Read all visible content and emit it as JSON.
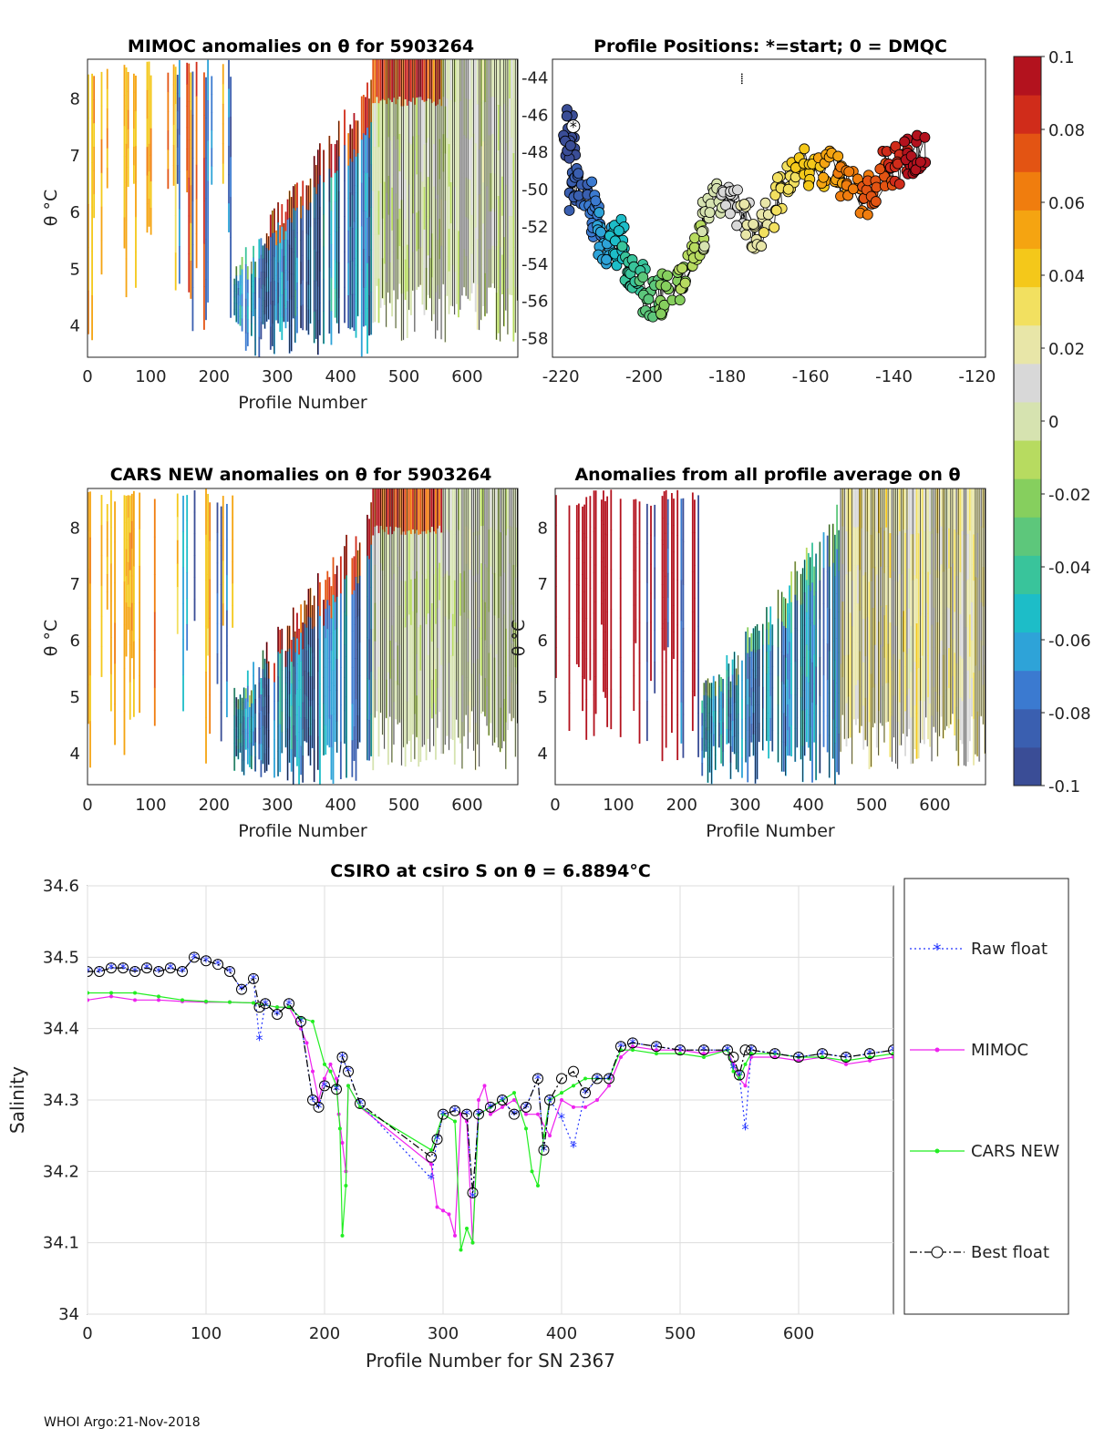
{
  "colors": {
    "raw_float": "#2233ff",
    "mimoc": "#ee22ee",
    "cars_new": "#22ee22",
    "best_float": "#000000",
    "colormap": [
      "#3a4d96",
      "#3a5fb0",
      "#3b7ad0",
      "#2ea3d8",
      "#1dbdc8",
      "#39c49b",
      "#5dc77b",
      "#86cf5e",
      "#b7db60",
      "#d6e3b0",
      "#d8d8d8",
      "#e8e6a8",
      "#f2e060",
      "#f4c81a",
      "#f5a411",
      "#f07d0e",
      "#e35413",
      "#d02c1a",
      "#b3121e"
    ]
  },
  "panels": {
    "mimoc": {
      "title": "MIMOC anomalies on θ  for 5903264",
      "ylabel": "θ °C",
      "xlabel": "Profile Number",
      "xticks": [
        "0",
        "100",
        "200",
        "300",
        "400",
        "500",
        "600"
      ],
      "yticks": [
        "4",
        "5",
        "6",
        "7",
        "8"
      ]
    },
    "positions": {
      "title": "Profile Positions: *=start; 0 = DMQC",
      "xticks": [
        "-220",
        "-200",
        "-180",
        "-160",
        "-140",
        "-120"
      ],
      "yticks": [
        "-44",
        "-46",
        "-48",
        "-50",
        "-52",
        "-54",
        "-56",
        "-58"
      ]
    },
    "cars": {
      "title": "CARS NEW anomalies on θ for 5903264",
      "ylabel": "θ °C",
      "xlabel": "Profile Number",
      "xticks": [
        "0",
        "100",
        "200",
        "300",
        "400",
        "500",
        "600"
      ],
      "yticks": [
        "4",
        "5",
        "6",
        "7",
        "8"
      ]
    },
    "average": {
      "title": "Anomalies from all profile average on θ",
      "ylabel": "θ °C",
      "xlabel": "Profile Number",
      "xticks": [
        "0",
        "100",
        "200",
        "300",
        "400",
        "500",
        "600"
      ],
      "yticks": [
        "4",
        "5",
        "6",
        "7",
        "8"
      ]
    }
  },
  "colorbar": {
    "ticks": [
      "0.1",
      "0.08",
      "0.06",
      "0.04",
      "0.02",
      "0",
      "-0.02",
      "-0.04",
      "-0.06",
      "-0.08",
      "-0.1"
    ]
  },
  "chart_data": [
    {
      "type": "line",
      "title": "CSIRO at csiro S on θ = 6.8894°C",
      "xlabel": "Profile Number for SN 2367",
      "ylabel": "Salinity",
      "xlim": [
        0,
        680
      ],
      "ylim": [
        34,
        34.6
      ],
      "xticks": [
        "0",
        "100",
        "200",
        "300",
        "400",
        "500",
        "600"
      ],
      "yticks": [
        "34.6",
        "34.5",
        "34.4",
        "34.3",
        "34.2",
        "34.1",
        "34"
      ],
      "series": [
        {
          "name": "Raw float",
          "style": "dotted-star",
          "x": [
            0,
            10,
            20,
            30,
            40,
            50,
            60,
            70,
            80,
            90,
            100,
            110,
            120,
            130,
            140,
            145,
            150,
            160,
            170,
            180,
            190,
            195,
            200,
            210,
            215,
            220,
            230,
            290,
            295,
            300,
            310,
            320,
            325,
            330,
            340,
            350,
            360,
            370,
            380,
            385,
            390,
            400,
            410,
            420,
            430,
            440,
            450,
            460,
            480,
            500,
            520,
            540,
            545,
            550,
            555,
            560,
            580,
            600,
            620,
            640,
            660,
            680
          ],
          "y": [
            34.48,
            34.48,
            34.485,
            34.485,
            34.48,
            34.485,
            34.48,
            34.485,
            34.48,
            34.5,
            34.495,
            34.49,
            34.48,
            34.455,
            34.47,
            34.385,
            34.435,
            34.42,
            34.435,
            34.41,
            34.3,
            34.29,
            34.32,
            34.315,
            34.36,
            34.34,
            34.295,
            34.19,
            34.245,
            34.28,
            34.285,
            34.28,
            34.165,
            34.28,
            34.29,
            34.3,
            34.28,
            34.29,
            34.33,
            34.23,
            34.3,
            34.275,
            34.235,
            34.31,
            34.33,
            34.33,
            34.375,
            34.38,
            34.375,
            34.37,
            34.37,
            34.37,
            34.345,
            34.335,
            34.26,
            34.37,
            34.365,
            34.36,
            34.365,
            34.36,
            34.365,
            34.37
          ]
        },
        {
          "name": "MIMOC",
          "style": "solid-dot",
          "x": [
            0,
            20,
            40,
            60,
            80,
            100,
            120,
            140,
            160,
            170,
            180,
            185,
            190,
            195,
            200,
            205,
            210,
            212,
            215,
            218,
            220,
            230,
            290,
            295,
            300,
            305,
            310,
            315,
            320,
            325,
            330,
            335,
            340,
            350,
            360,
            370,
            380,
            390,
            400,
            410,
            420,
            430,
            440,
            450,
            460,
            480,
            500,
            520,
            540,
            545,
            550,
            555,
            560,
            580,
            600,
            620,
            640,
            660,
            680
          ],
          "y": [
            34.44,
            34.445,
            34.44,
            34.44,
            34.438,
            34.437,
            34.437,
            34.436,
            34.43,
            34.43,
            34.4,
            34.38,
            34.34,
            34.3,
            34.33,
            34.35,
            34.33,
            34.28,
            34.24,
            34.2,
            34.32,
            34.29,
            34.21,
            34.15,
            34.145,
            34.14,
            34.11,
            34.28,
            34.27,
            34.1,
            34.3,
            34.32,
            34.28,
            34.29,
            34.3,
            34.28,
            34.28,
            34.25,
            34.3,
            34.29,
            34.29,
            34.3,
            34.32,
            34.36,
            34.375,
            34.37,
            34.37,
            34.365,
            34.37,
            34.35,
            34.33,
            34.32,
            34.36,
            34.36,
            34.355,
            34.36,
            34.35,
            34.355,
            34.36
          ]
        },
        {
          "name": "CARS NEW",
          "style": "solid-dot",
          "x": [
            0,
            20,
            40,
            60,
            80,
            100,
            120,
            140,
            160,
            170,
            180,
            190,
            200,
            205,
            210,
            213,
            215,
            218,
            220,
            230,
            290,
            300,
            310,
            315,
            320,
            325,
            330,
            340,
            350,
            360,
            370,
            375,
            380,
            385,
            390,
            400,
            410,
            420,
            430,
            440,
            450,
            460,
            480,
            500,
            520,
            540,
            545,
            550,
            555,
            560,
            580,
            600,
            620,
            640,
            660,
            680
          ],
          "y": [
            34.45,
            34.45,
            34.45,
            34.445,
            34.44,
            34.438,
            34.437,
            34.436,
            34.43,
            34.43,
            34.415,
            34.41,
            34.35,
            34.34,
            34.32,
            34.26,
            34.11,
            34.18,
            34.32,
            34.29,
            34.23,
            34.28,
            34.27,
            34.09,
            34.12,
            34.1,
            34.28,
            34.29,
            34.3,
            34.31,
            34.26,
            34.2,
            34.18,
            34.25,
            34.3,
            34.31,
            34.32,
            34.33,
            34.33,
            34.33,
            34.37,
            34.37,
            34.365,
            34.365,
            34.36,
            34.37,
            34.34,
            34.33,
            34.35,
            34.365,
            34.365,
            34.36,
            34.36,
            34.355,
            34.36,
            34.365
          ]
        },
        {
          "name": "Best float",
          "style": "dashdot-circle",
          "x": [
            0,
            10,
            20,
            30,
            40,
            50,
            60,
            70,
            80,
            90,
            100,
            110,
            120,
            130,
            140,
            145,
            150,
            160,
            170,
            180,
            190,
            195,
            200,
            210,
            215,
            220,
            230,
            290,
            295,
            300,
            310,
            320,
            325,
            330,
            340,
            350,
            360,
            370,
            380,
            385,
            390,
            400,
            410,
            420,
            430,
            440,
            450,
            460,
            480,
            500,
            520,
            540,
            545,
            550,
            555,
            560,
            580,
            600,
            620,
            640,
            660,
            680
          ],
          "y": [
            34.48,
            34.48,
            34.485,
            34.485,
            34.48,
            34.485,
            34.48,
            34.485,
            34.48,
            34.5,
            34.495,
            34.49,
            34.48,
            34.455,
            34.47,
            34.43,
            34.435,
            34.42,
            34.435,
            34.41,
            34.3,
            34.29,
            34.32,
            34.315,
            34.36,
            34.34,
            34.295,
            34.22,
            34.245,
            34.28,
            34.285,
            34.28,
            34.17,
            34.28,
            34.29,
            34.3,
            34.28,
            34.29,
            34.33,
            34.23,
            34.3,
            34.33,
            34.34,
            34.31,
            34.33,
            34.33,
            34.375,
            34.38,
            34.375,
            34.37,
            34.37,
            34.37,
            34.36,
            34.335,
            34.37,
            34.37,
            34.365,
            34.36,
            34.365,
            34.36,
            34.365,
            34.37
          ]
        }
      ]
    }
  ],
  "footer": "WHOI Argo:21-Nov-2018"
}
